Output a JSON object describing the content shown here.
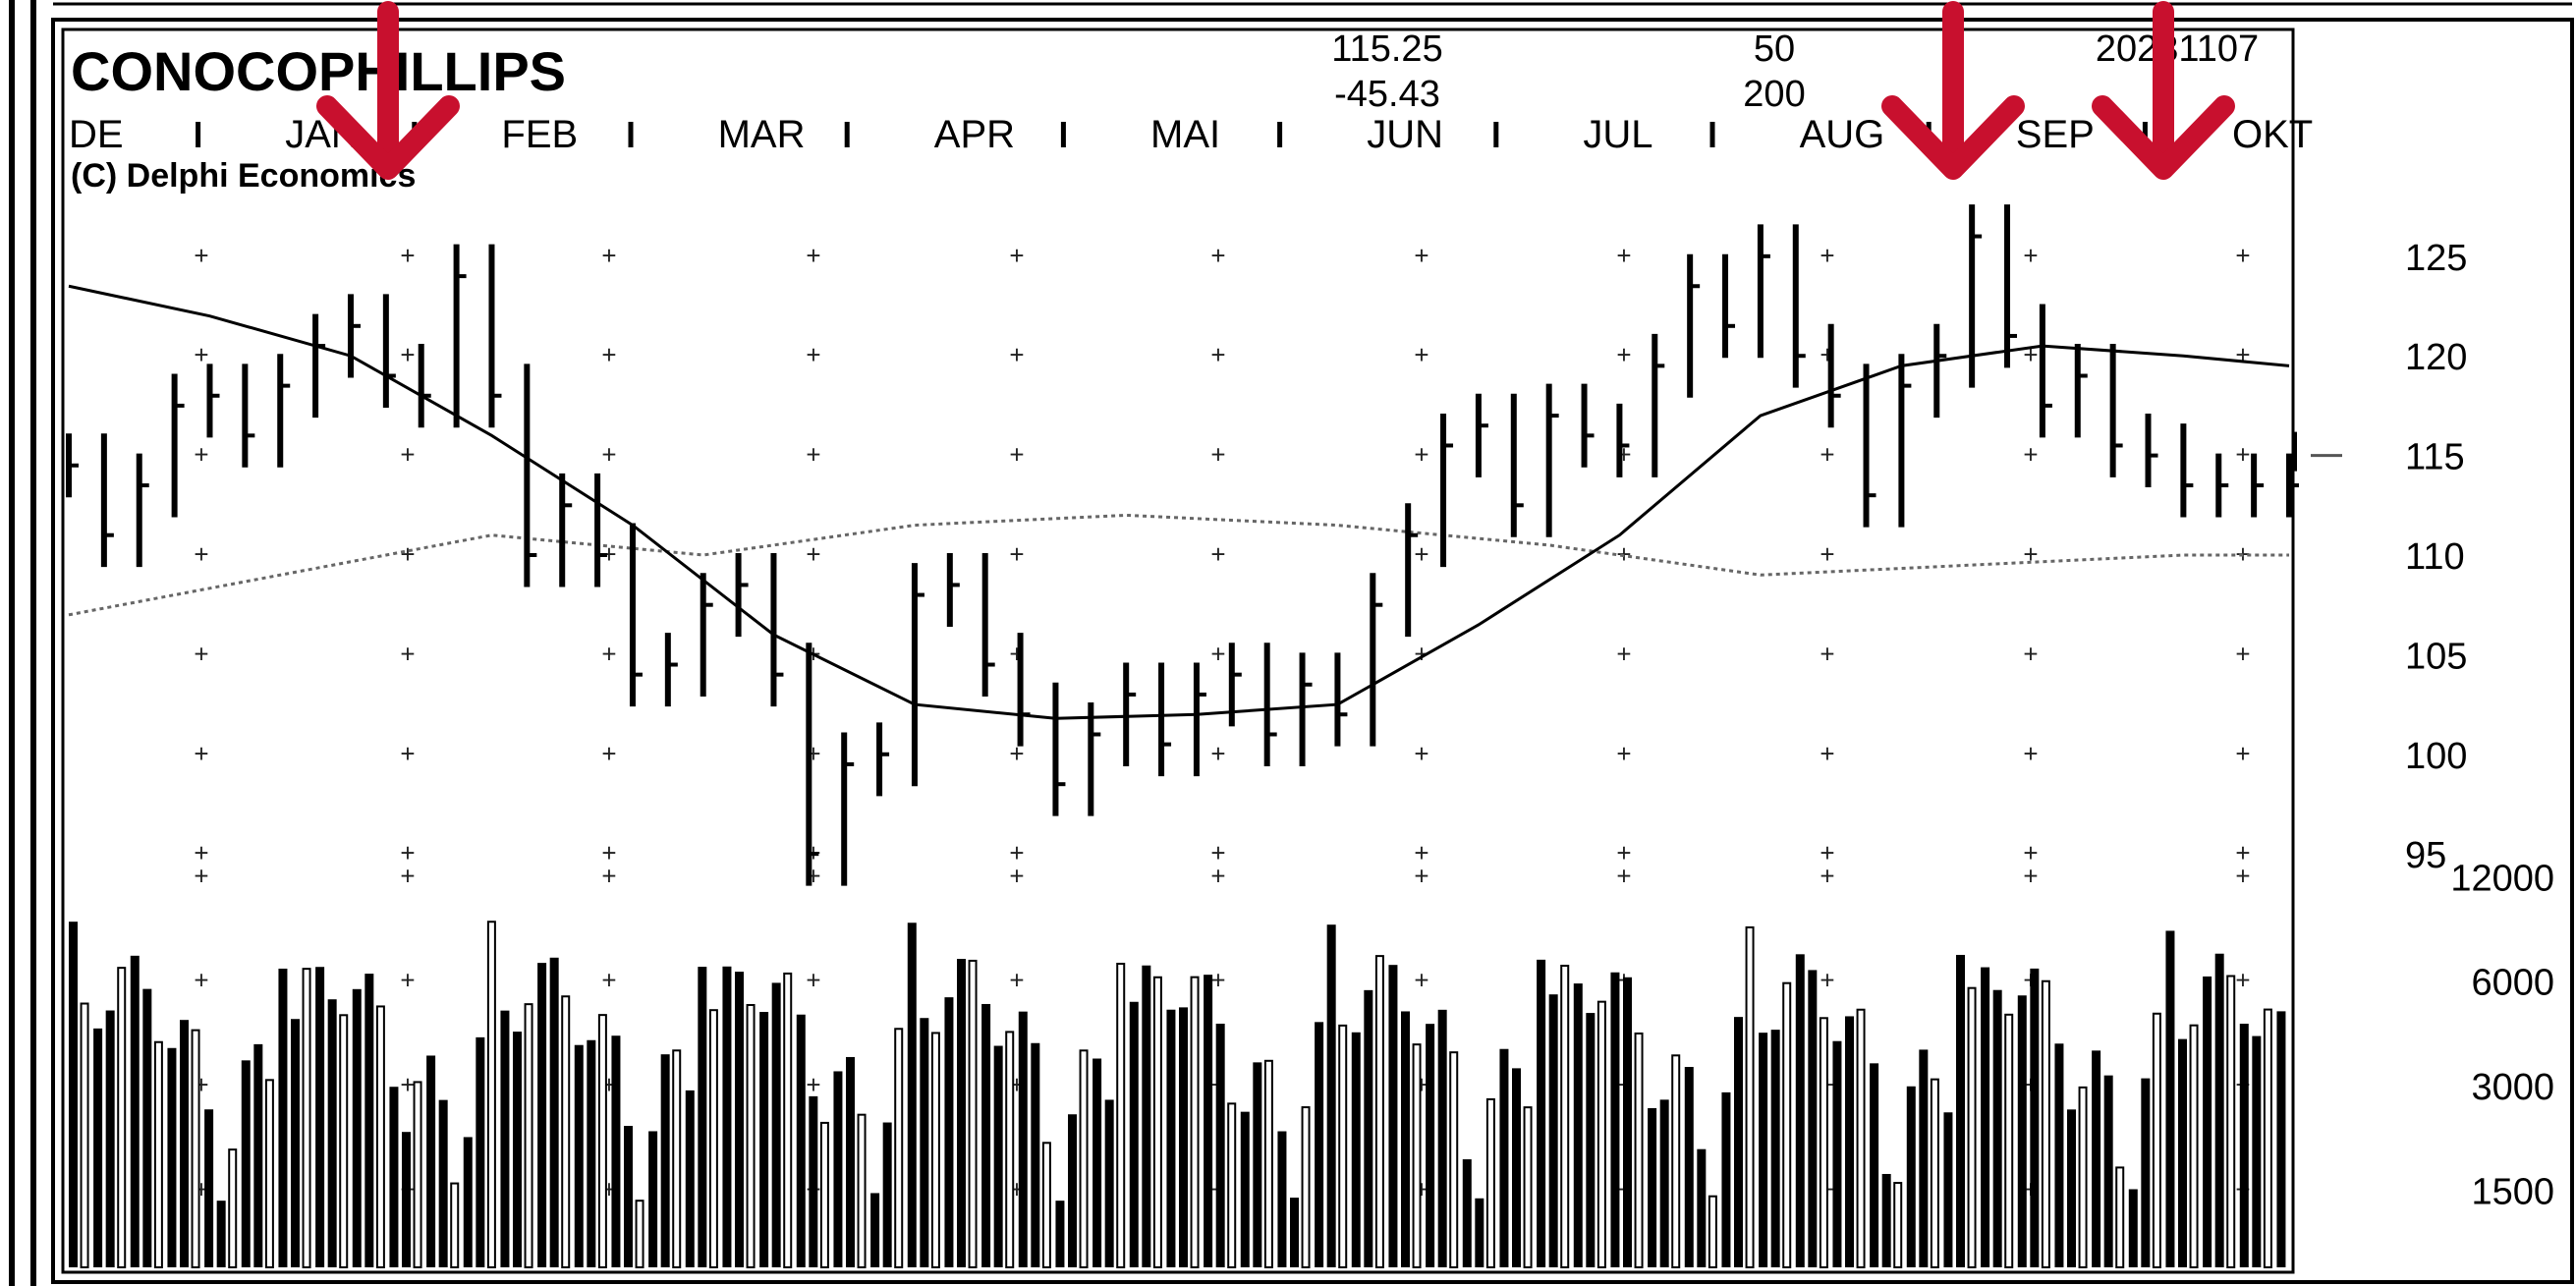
{
  "chart_data": {
    "type": "bar",
    "title": "CONOCOPHILLIPS",
    "copyright": "(C) Delphi Economics",
    "header_info": {
      "price": "115.25",
      "change": "-45.43",
      "ma_short": "50",
      "ma_long": "200",
      "date": "20231107"
    },
    "months": [
      "DE",
      "JAN",
      "FEB",
      "MAR",
      "APR",
      "MAI",
      "JUN",
      "JUL",
      "AUG",
      "SEP",
      "OKT"
    ],
    "price_axis": {
      "ticks": [
        95,
        100,
        105,
        110,
        115,
        120,
        125
      ],
      "range": [
        92,
        128
      ]
    },
    "volume_axis": {
      "ticks": [
        1500,
        3000,
        6000,
        12000
      ],
      "scale": "log",
      "range": [
        900,
        13000
      ]
    },
    "series": [
      {
        "x": [
          0,
          5,
          10,
          15,
          20,
          25,
          30,
          35,
          40,
          45,
          50,
          55,
          60,
          65,
          70,
          75,
          80,
          85,
          90,
          95,
          100,
          105,
          110,
          115,
          120,
          125,
          130,
          135,
          140,
          145,
          150,
          155,
          160,
          165,
          170,
          175,
          180,
          185,
          190,
          195,
          200,
          205,
          210,
          215,
          220,
          225,
          230,
          235,
          240,
          245,
          250,
          255,
          260,
          265,
          270,
          275,
          280,
          285,
          290,
          295,
          300,
          305,
          310,
          315
        ],
        "close": [
          114.5,
          111.0,
          113.5,
          117.5,
          118.0,
          116.0,
          118.5,
          120.5,
          121.5,
          119.0,
          118.0,
          124.0,
          118.0,
          110.0,
          112.5,
          110.0,
          104.0,
          104.5,
          107.5,
          108.5,
          104.0,
          95.0,
          99.5,
          100.0,
          108.0,
          108.5,
          104.5,
          102.0,
          98.5,
          101.0,
          103.0,
          100.5,
          103.0,
          104.0,
          101.0,
          103.5,
          102.0,
          107.5,
          111.0,
          115.5,
          116.5,
          112.5,
          117.0,
          116.0,
          115.5,
          119.5,
          123.5,
          121.5,
          125.0,
          120.0,
          118.0,
          113.0,
          118.5,
          120.0,
          126.0,
          121.0,
          117.5,
          119.0,
          115.5,
          115.0,
          113.5,
          113.5,
          113.5,
          113.5
        ]
      }
    ],
    "ma50": {
      "x": [
        0,
        20,
        40,
        60,
        80,
        100,
        120,
        140,
        160,
        180,
        200,
        220,
        240,
        260,
        280,
        300,
        315
      ],
      "values": [
        123.5,
        122.0,
        120.0,
        116.0,
        111.5,
        106.0,
        102.5,
        101.8,
        102.0,
        102.5,
        106.5,
        111.0,
        117.0,
        119.5,
        120.5,
        120.0,
        119.5
      ]
    },
    "ma200": {
      "x": [
        0,
        30,
        60,
        90,
        120,
        150,
        180,
        210,
        240,
        270,
        300,
        315
      ],
      "values": [
        107.0,
        109.0,
        111.0,
        110.0,
        111.5,
        112.0,
        111.5,
        110.5,
        109.0,
        109.5,
        110.0,
        110.0
      ]
    },
    "peaks_marked": [
      "JAN",
      "SEP",
      "OKT"
    ],
    "last_price_marker": 115.0
  },
  "colors": {
    "arrow": "#c8102e",
    "ink": "#000000",
    "grid_plus": "#222222",
    "ma200": "#666666"
  }
}
